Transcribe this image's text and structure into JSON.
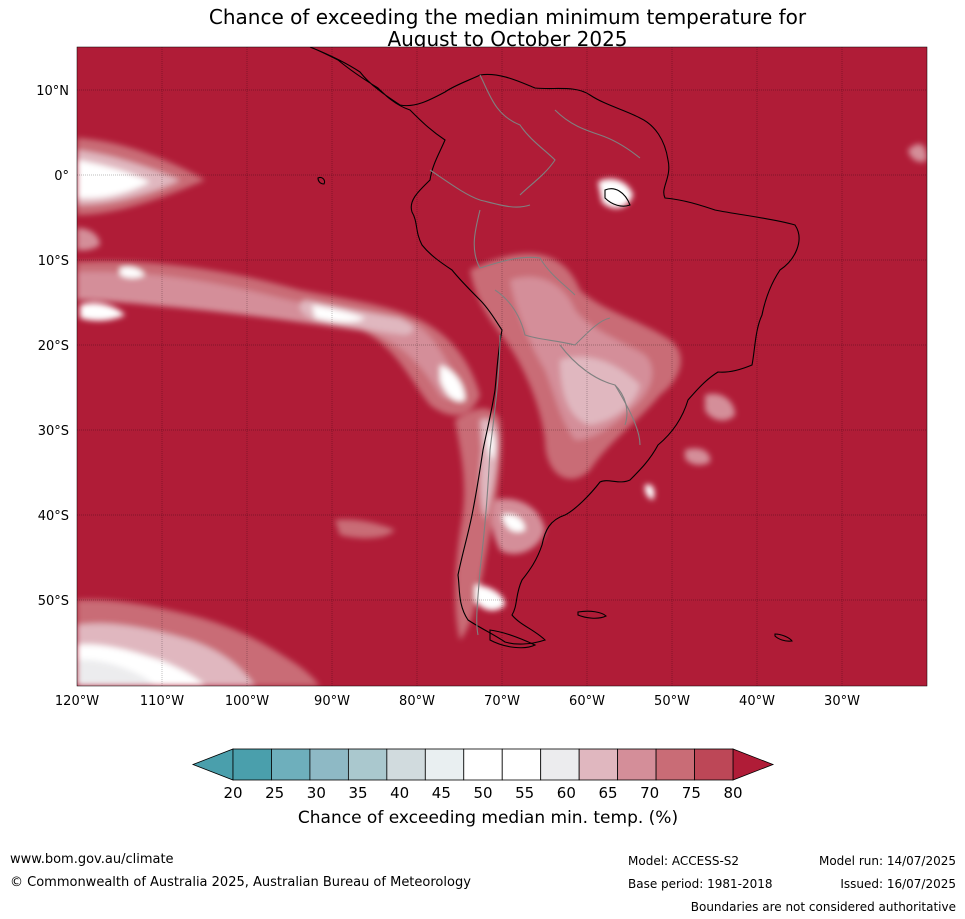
{
  "title_line1": "Chance of exceeding the median minimum temperature for",
  "title_line2": "August to October 2025",
  "lat_labels": [
    "10°N",
    "0°",
    "10°S",
    "20°S",
    "30°S",
    "40°S",
    "50°S"
  ],
  "lon_labels": [
    "120°W",
    "110°W",
    "100°W",
    "90°W",
    "80°W",
    "70°W",
    "60°W",
    "50°W",
    "40°W",
    "30°W"
  ],
  "colorbar": {
    "ticks": [
      "20",
      "25",
      "30",
      "35",
      "40",
      "45",
      "50",
      "55",
      "60",
      "65",
      "70",
      "75",
      "80"
    ],
    "colors": [
      "#4a9fac",
      "#6eafbc",
      "#8eb9c5",
      "#aac8ce",
      "#d1dbde",
      "#e9eff1",
      "#ffffff",
      "#ffffff",
      "#ececee",
      "#e0b7bf",
      "#d48e99",
      "#c96c76",
      "#bd4757"
    ],
    "under_color": "#4a9fac",
    "over_color": "#b01c37",
    "label": "Chance of exceeding median min. temp. (%)"
  },
  "map": {
    "background_color": "#b01c37"
  },
  "footer": {
    "url": "www.bom.gov.au/climate",
    "copyright": "© Commonwealth of Australia 2025, Australian Bureau of Meteorology",
    "model": "Model: ACCESS-S2",
    "base_period": "Base period: 1981-2018",
    "model_run": "Model run: 14/07/2025",
    "issued": "Issued: 16/07/2025",
    "disclaimer": "Boundaries are not considered authoritative"
  }
}
